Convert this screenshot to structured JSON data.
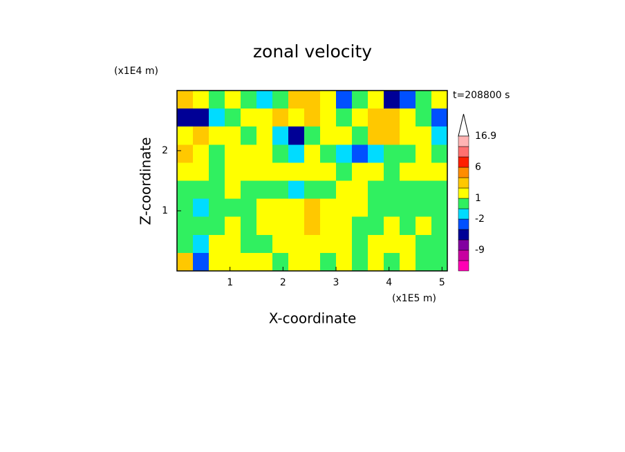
{
  "chart_data": {
    "type": "contour",
    "title": "zonal velocity",
    "annotation": "t=208800 s",
    "x_label": "X-coordinate",
    "y_label": "Z-coordinate",
    "x_unit": "(x1E5 m)",
    "y_unit": "(x1E4 m)",
    "xlim": [
      0,
      5.1
    ],
    "ylim": [
      0,
      3
    ],
    "xticks": [
      1,
      2,
      3,
      4,
      5
    ],
    "yticks": [
      1,
      2
    ],
    "x": [
      0.15,
      0.45,
      0.75,
      1.05,
      1.35,
      1.65,
      1.95,
      2.25,
      2.55,
      2.85,
      3.15,
      3.45,
      3.75,
      4.05,
      4.35,
      4.65,
      4.95
    ],
    "y": [
      2.85,
      2.55,
      2.25,
      1.95,
      1.65,
      1.35,
      1.05,
      0.75,
      0.45,
      0.15
    ],
    "values": [
      [
        3,
        1.5,
        0.5,
        1.5,
        0.5,
        -1.5,
        0.5,
        2,
        3,
        1.5,
        -3,
        0.5,
        1.5,
        -5,
        -3,
        0.5,
        1.5
      ],
      [
        -5,
        -5,
        -1.5,
        0.5,
        1.5,
        1.5,
        3,
        1.5,
        3,
        1.5,
        0.5,
        1.5,
        3,
        3,
        1.5,
        0.5,
        -3
      ],
      [
        1.5,
        3,
        1.5,
        1.5,
        0.5,
        1.5,
        -1.5,
        -5,
        0.5,
        1.5,
        1.5,
        0.5,
        3,
        3,
        1.5,
        1.5,
        -1.5
      ],
      [
        3,
        1.5,
        0.5,
        1.5,
        1.5,
        1.5,
        0.5,
        -1.5,
        1.5,
        0.5,
        -1.5,
        -3,
        -1.5,
        0.5,
        0.5,
        1.5,
        0.5
      ],
      [
        1.5,
        1.5,
        0.5,
        1.5,
        1.5,
        1.5,
        1.5,
        1.5,
        1.5,
        1.5,
        0.5,
        1.5,
        1.5,
        0.5,
        1.5,
        1.5,
        1.5
      ],
      [
        0.5,
        0.5,
        0.5,
        1.5,
        0.5,
        0.5,
        0.5,
        -1.5,
        0.5,
        0.5,
        1.5,
        1.5,
        0.5,
        0.5,
        0.5,
        0.5,
        0.5
      ],
      [
        0.5,
        -1.5,
        0.5,
        0.5,
        0.5,
        1.5,
        1.5,
        1.5,
        3,
        1.5,
        1.5,
        1.5,
        0.5,
        0.5,
        0.5,
        0.5,
        0.5
      ],
      [
        0.5,
        0.5,
        0.5,
        1.5,
        0.5,
        1.5,
        1.5,
        1.5,
        3,
        1.5,
        1.5,
        0.5,
        0.5,
        1.5,
        0.5,
        1.5,
        0.5
      ],
      [
        0.5,
        -1.5,
        1.5,
        1.5,
        0.5,
        0.5,
        1.5,
        1.5,
        1.5,
        1.5,
        1.5,
        0.5,
        1.5,
        1.5,
        1.5,
        0.5,
        0.5
      ],
      [
        3,
        -3,
        1.5,
        1.5,
        1.5,
        1.5,
        0.5,
        1.5,
        1.5,
        0.5,
        1.5,
        0.5,
        1.5,
        0.5,
        1.5,
        0.5,
        0.5
      ]
    ],
    "levels": [
      -16,
      -12,
      -9,
      -6,
      -4,
      -2,
      -1,
      1,
      2,
      4,
      6,
      10,
      13,
      16.9
    ],
    "colors": [
      "#ff00b4",
      "#c800a0",
      "#8200a0",
      "#000096",
      "#0050ff",
      "#00dcff",
      "#30f060",
      "#ffff00",
      "#ffc800",
      "#ff8c00",
      "#ff1e00",
      "#ff7070",
      "#ffb4b4"
    ],
    "cbar_ticks": [
      -9,
      -2,
      1,
      6,
      16.9
    ]
  }
}
